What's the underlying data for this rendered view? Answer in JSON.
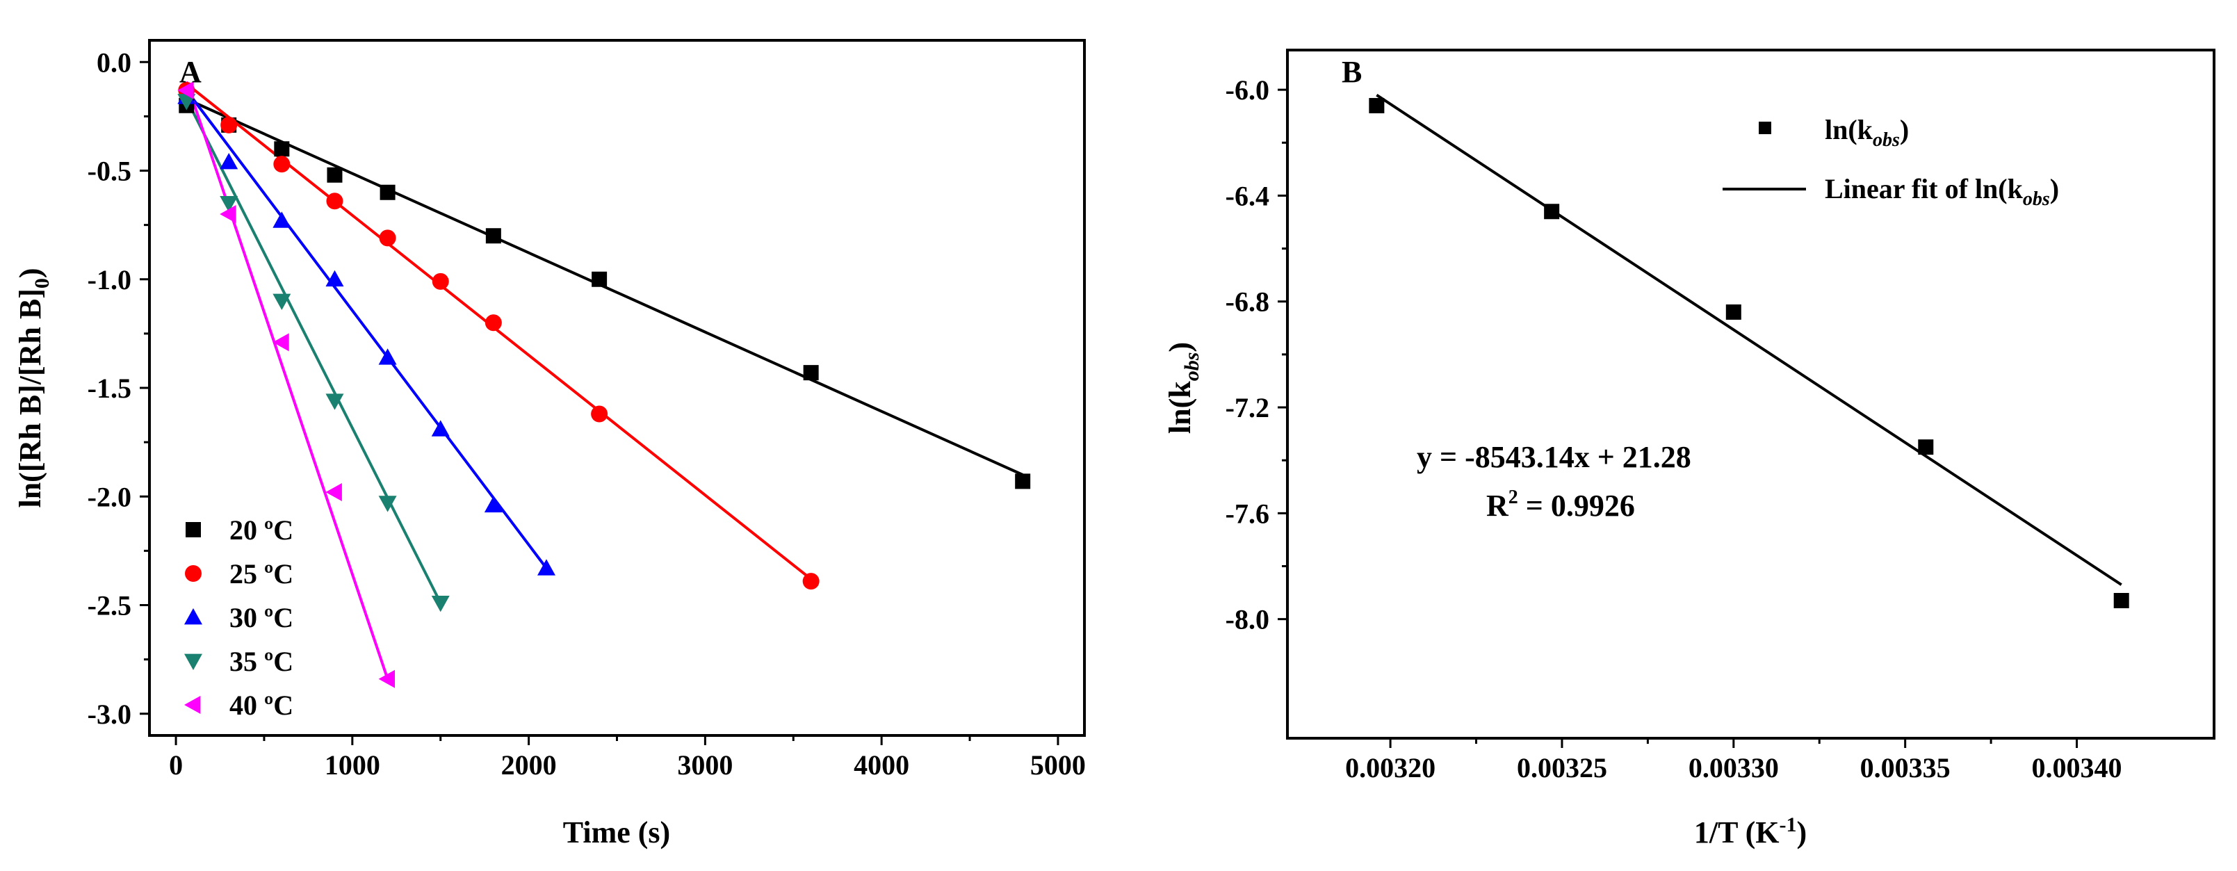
{
  "chart_data": [
    {
      "type": "scatter",
      "panel_label": "A",
      "xlabel": "Time (s)",
      "ylabel": "ln([Rh B]/[Rh B]",
      "ylabel_sub": "0",
      "ylabel_close": ")",
      "xlim": [
        -150,
        5150
      ],
      "ylim": [
        -3.1,
        0.1
      ],
      "xticks": [
        0,
        1000,
        2000,
        3000,
        4000,
        5000
      ],
      "xtick_labels": [
        "0",
        "1000",
        "2000",
        "3000",
        "4000",
        "5000"
      ],
      "yticks": [
        0.0,
        -0.5,
        -1.0,
        -1.5,
        -2.0,
        -2.5,
        -3.0
      ],
      "ytick_labels": [
        "0.0",
        "-0.5",
        "-1.0",
        "-1.5",
        "-2.0",
        "-2.5",
        "-3.0"
      ],
      "legend_position": "bottom-left",
      "series": [
        {
          "name": "20 ºC",
          "color": "#000000",
          "marker": "square",
          "x": [
            60,
            300,
            600,
            900,
            1200,
            1800,
            2400,
            3600,
            4800
          ],
          "y": [
            -0.2,
            -0.29,
            -0.4,
            -0.52,
            -0.6,
            -0.8,
            -1.0,
            -1.43,
            -1.93
          ],
          "fit": {
            "x": [
              60,
              4800
            ],
            "y": [
              -0.17,
              -1.9
            ]
          }
        },
        {
          "name": "25 ºC",
          "color": "#ff0000",
          "marker": "circle",
          "x": [
            60,
            300,
            600,
            900,
            1200,
            1500,
            1800,
            2400,
            3600
          ],
          "y": [
            -0.13,
            -0.29,
            -0.47,
            -0.64,
            -0.81,
            -1.01,
            -1.2,
            -1.62,
            -2.39
          ],
          "fit": {
            "x": [
              60,
              3600
            ],
            "y": [
              -0.1,
              -2.38
            ]
          }
        },
        {
          "name": "30 ºC",
          "color": "#0000ff",
          "marker": "triangle-up",
          "x": [
            60,
            300,
            600,
            900,
            1200,
            1500,
            1800,
            2100
          ],
          "y": [
            -0.16,
            -0.46,
            -0.73,
            -1.0,
            -1.36,
            -1.69,
            -2.04,
            -2.33
          ],
          "fit": {
            "x": [
              60,
              2100
            ],
            "y": [
              -0.13,
              -2.33
            ]
          }
        },
        {
          "name": "35 ºC",
          "color": "#1a8070",
          "marker": "triangle-down",
          "x": [
            60,
            300,
            600,
            900,
            1200,
            1500
          ],
          "y": [
            -0.18,
            -0.65,
            -1.1,
            -1.56,
            -2.03,
            -2.49
          ],
          "fit": {
            "x": [
              60,
              1500
            ],
            "y": [
              -0.17,
              -2.49
            ]
          }
        },
        {
          "name": "40 ºC",
          "color": "#ff00ff",
          "marker": "triangle-left",
          "x": [
            60,
            300,
            600,
            900,
            1200
          ],
          "y": [
            -0.13,
            -0.7,
            -1.29,
            -1.98,
            -2.84
          ],
          "fit": {
            "x": [
              60,
              1200
            ],
            "y": [
              -0.09,
              -2.84
            ]
          }
        }
      ]
    },
    {
      "type": "scatter",
      "panel_label": "B",
      "xlabel": "1/T (K",
      "xlabel_sup": "-1",
      "xlabel_close": ")",
      "ylabel": "ln(k",
      "ylabel_sub": "obs",
      "ylabel_close": ")",
      "xlim": [
        0.00317,
        0.00344
      ],
      "ylim": [
        -8.45,
        -5.85
      ],
      "xticks": [
        0.0032,
        0.00325,
        0.0033,
        0.00335,
        0.0034
      ],
      "xtick_labels": [
        "0.00320",
        "0.00325",
        "0.00330",
        "0.00335",
        "0.00340"
      ],
      "yticks": [
        -6.0,
        -6.4,
        -6.8,
        -7.2,
        -7.6,
        -8.0
      ],
      "ytick_labels": [
        "-6.0",
        "-6.4",
        "-6.8",
        "-7.2",
        "-7.6",
        "-8.0"
      ],
      "legend_position": "top-right",
      "series": [
        {
          "name": "ln(k",
          "name_sub": "obs",
          "name_close": ")",
          "color": "#000000",
          "marker": "square",
          "x": [
            0.003196,
            0.003247,
            0.0033,
            0.003356,
            0.003413
          ],
          "y": [
            -6.06,
            -6.46,
            -6.84,
            -7.35,
            -7.93
          ]
        },
        {
          "name": "Linear fit of ln(k",
          "name_sub": "obs",
          "name_close": ")",
          "color": "#000000",
          "marker": "line",
          "fit": {
            "x": [
              0.003196,
              0.003413
            ],
            "y": [
              -6.02,
              -7.87
            ]
          }
        }
      ],
      "annotation": {
        "equation": "y = -8543.14x + 21.28",
        "r2_prefix": "R",
        "r2_sup": "2",
        "r2_value": " = 0.9926"
      }
    }
  ]
}
